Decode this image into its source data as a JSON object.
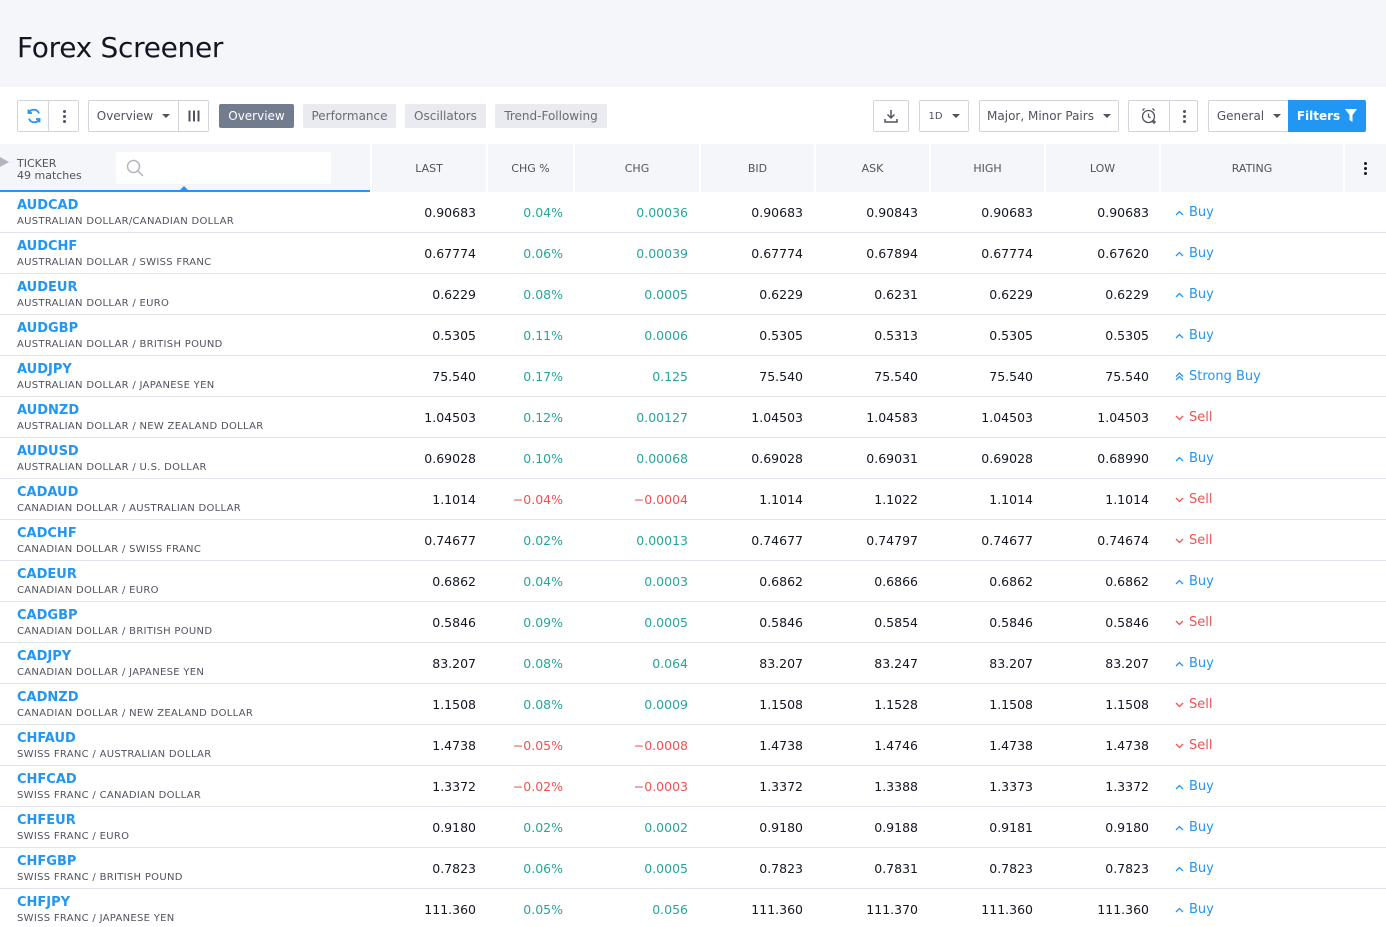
{
  "page": {
    "title": "Forex Screener"
  },
  "toolbar": {
    "refresh_icon": "refresh-icon",
    "view_select": "Overview",
    "columns_icon": "columns-icon",
    "tabs": [
      "Overview",
      "Performance",
      "Oscillators",
      "Trend-Following"
    ],
    "active_tab": "Overview",
    "export_icon": "download-icon",
    "interval": "1D",
    "pairs_filter": "Major, Minor Pairs",
    "alert_icon": "alarm-clock-icon",
    "general_select": "General",
    "filters_label": "Filters",
    "filter_icon": "funnel-icon"
  },
  "table": {
    "ticker_header": "TICKER",
    "matches": "49 matches",
    "search_placeholder": "",
    "columns": [
      "LAST",
      "CHG %",
      "CHG",
      "BID",
      "ASK",
      "HIGH",
      "LOW",
      "RATING"
    ],
    "rows": [
      {
        "symbol": "AUDCAD",
        "desc": "AUSTRALIAN DOLLAR/CANADIAN DOLLAR",
        "last": "0.90683",
        "chgp": "0.04%",
        "chg": "0.00036",
        "bid": "0.90683",
        "ask": "0.90843",
        "high": "0.90683",
        "low": "0.90683",
        "rating": "Buy",
        "trend": "up"
      },
      {
        "symbol": "AUDCHF",
        "desc": "AUSTRALIAN DOLLAR / SWISS FRANC",
        "last": "0.67774",
        "chgp": "0.06%",
        "chg": "0.00039",
        "bid": "0.67774",
        "ask": "0.67894",
        "high": "0.67774",
        "low": "0.67620",
        "rating": "Buy",
        "trend": "up"
      },
      {
        "symbol": "AUDEUR",
        "desc": "AUSTRALIAN DOLLAR / EURO",
        "last": "0.6229",
        "chgp": "0.08%",
        "chg": "0.0005",
        "bid": "0.6229",
        "ask": "0.6231",
        "high": "0.6229",
        "low": "0.6229",
        "rating": "Buy",
        "trend": "up"
      },
      {
        "symbol": "AUDGBP",
        "desc": "AUSTRALIAN DOLLAR / BRITISH POUND",
        "last": "0.5305",
        "chgp": "0.11%",
        "chg": "0.0006",
        "bid": "0.5305",
        "ask": "0.5313",
        "high": "0.5305",
        "low": "0.5305",
        "rating": "Buy",
        "trend": "up"
      },
      {
        "symbol": "AUDJPY",
        "desc": "AUSTRALIAN DOLLAR / JAPANESE YEN",
        "last": "75.540",
        "chgp": "0.17%",
        "chg": "0.125",
        "bid": "75.540",
        "ask": "75.540",
        "high": "75.540",
        "low": "75.540",
        "rating": "Strong Buy",
        "trend": "up"
      },
      {
        "symbol": "AUDNZD",
        "desc": "AUSTRALIAN DOLLAR / NEW ZEALAND DOLLAR",
        "last": "1.04503",
        "chgp": "0.12%",
        "chg": "0.00127",
        "bid": "1.04503",
        "ask": "1.04583",
        "high": "1.04503",
        "low": "1.04503",
        "rating": "Sell",
        "trend": "up"
      },
      {
        "symbol": "AUDUSD",
        "desc": "AUSTRALIAN DOLLAR / U.S. DOLLAR",
        "last": "0.69028",
        "chgp": "0.10%",
        "chg": "0.00068",
        "bid": "0.69028",
        "ask": "0.69031",
        "high": "0.69028",
        "low": "0.68990",
        "rating": "Buy",
        "trend": "up"
      },
      {
        "symbol": "CADAUD",
        "desc": "CANADIAN DOLLAR / AUSTRALIAN DOLLAR",
        "last": "1.1014",
        "chgp": "−0.04%",
        "chg": "−0.0004",
        "bid": "1.1014",
        "ask": "1.1022",
        "high": "1.1014",
        "low": "1.1014",
        "rating": "Sell",
        "trend": "down"
      },
      {
        "symbol": "CADCHF",
        "desc": "CANADIAN DOLLAR / SWISS FRANC",
        "last": "0.74677",
        "chgp": "0.02%",
        "chg": "0.00013",
        "bid": "0.74677",
        "ask": "0.74797",
        "high": "0.74677",
        "low": "0.74674",
        "rating": "Sell",
        "trend": "up"
      },
      {
        "symbol": "CADEUR",
        "desc": "CANADIAN DOLLAR / EURO",
        "last": "0.6862",
        "chgp": "0.04%",
        "chg": "0.0003",
        "bid": "0.6862",
        "ask": "0.6866",
        "high": "0.6862",
        "low": "0.6862",
        "rating": "Buy",
        "trend": "up"
      },
      {
        "symbol": "CADGBP",
        "desc": "CANADIAN DOLLAR / BRITISH POUND",
        "last": "0.5846",
        "chgp": "0.09%",
        "chg": "0.0005",
        "bid": "0.5846",
        "ask": "0.5854",
        "high": "0.5846",
        "low": "0.5846",
        "rating": "Sell",
        "trend": "up"
      },
      {
        "symbol": "CADJPY",
        "desc": "CANADIAN DOLLAR / JAPANESE YEN",
        "last": "83.207",
        "chgp": "0.08%",
        "chg": "0.064",
        "bid": "83.207",
        "ask": "83.247",
        "high": "83.207",
        "low": "83.207",
        "rating": "Buy",
        "trend": "up"
      },
      {
        "symbol": "CADNZD",
        "desc": "CANADIAN DOLLAR / NEW ZEALAND DOLLAR",
        "last": "1.1508",
        "chgp": "0.08%",
        "chg": "0.0009",
        "bid": "1.1508",
        "ask": "1.1528",
        "high": "1.1508",
        "low": "1.1508",
        "rating": "Sell",
        "trend": "up"
      },
      {
        "symbol": "CHFAUD",
        "desc": "SWISS FRANC / AUSTRALIAN DOLLAR",
        "last": "1.4738",
        "chgp": "−0.05%",
        "chg": "−0.0008",
        "bid": "1.4738",
        "ask": "1.4746",
        "high": "1.4738",
        "low": "1.4738",
        "rating": "Sell",
        "trend": "down"
      },
      {
        "symbol": "CHFCAD",
        "desc": "SWISS FRANC / CANADIAN DOLLAR",
        "last": "1.3372",
        "chgp": "−0.02%",
        "chg": "−0.0003",
        "bid": "1.3372",
        "ask": "1.3388",
        "high": "1.3373",
        "low": "1.3372",
        "rating": "Buy",
        "trend": "down"
      },
      {
        "symbol": "CHFEUR",
        "desc": "SWISS FRANC / EURO",
        "last": "0.9180",
        "chgp": "0.02%",
        "chg": "0.0002",
        "bid": "0.9180",
        "ask": "0.9188",
        "high": "0.9181",
        "low": "0.9180",
        "rating": "Buy",
        "trend": "up"
      },
      {
        "symbol": "CHFGBP",
        "desc": "SWISS FRANC / BRITISH POUND",
        "last": "0.7823",
        "chgp": "0.06%",
        "chg": "0.0005",
        "bid": "0.7823",
        "ask": "0.7831",
        "high": "0.7823",
        "low": "0.7823",
        "rating": "Buy",
        "trend": "up"
      },
      {
        "symbol": "CHFJPY",
        "desc": "SWISS FRANC / JAPANESE YEN",
        "last": "111.360",
        "chgp": "0.05%",
        "chg": "0.056",
        "bid": "111.360",
        "ask": "111.370",
        "high": "111.360",
        "low": "111.360",
        "rating": "Buy",
        "trend": "up"
      }
    ]
  },
  "colors": {
    "accent": "#2196f3",
    "positive": "#26a69a",
    "negative": "#ef5350",
    "active_tab": "#717d8e"
  }
}
